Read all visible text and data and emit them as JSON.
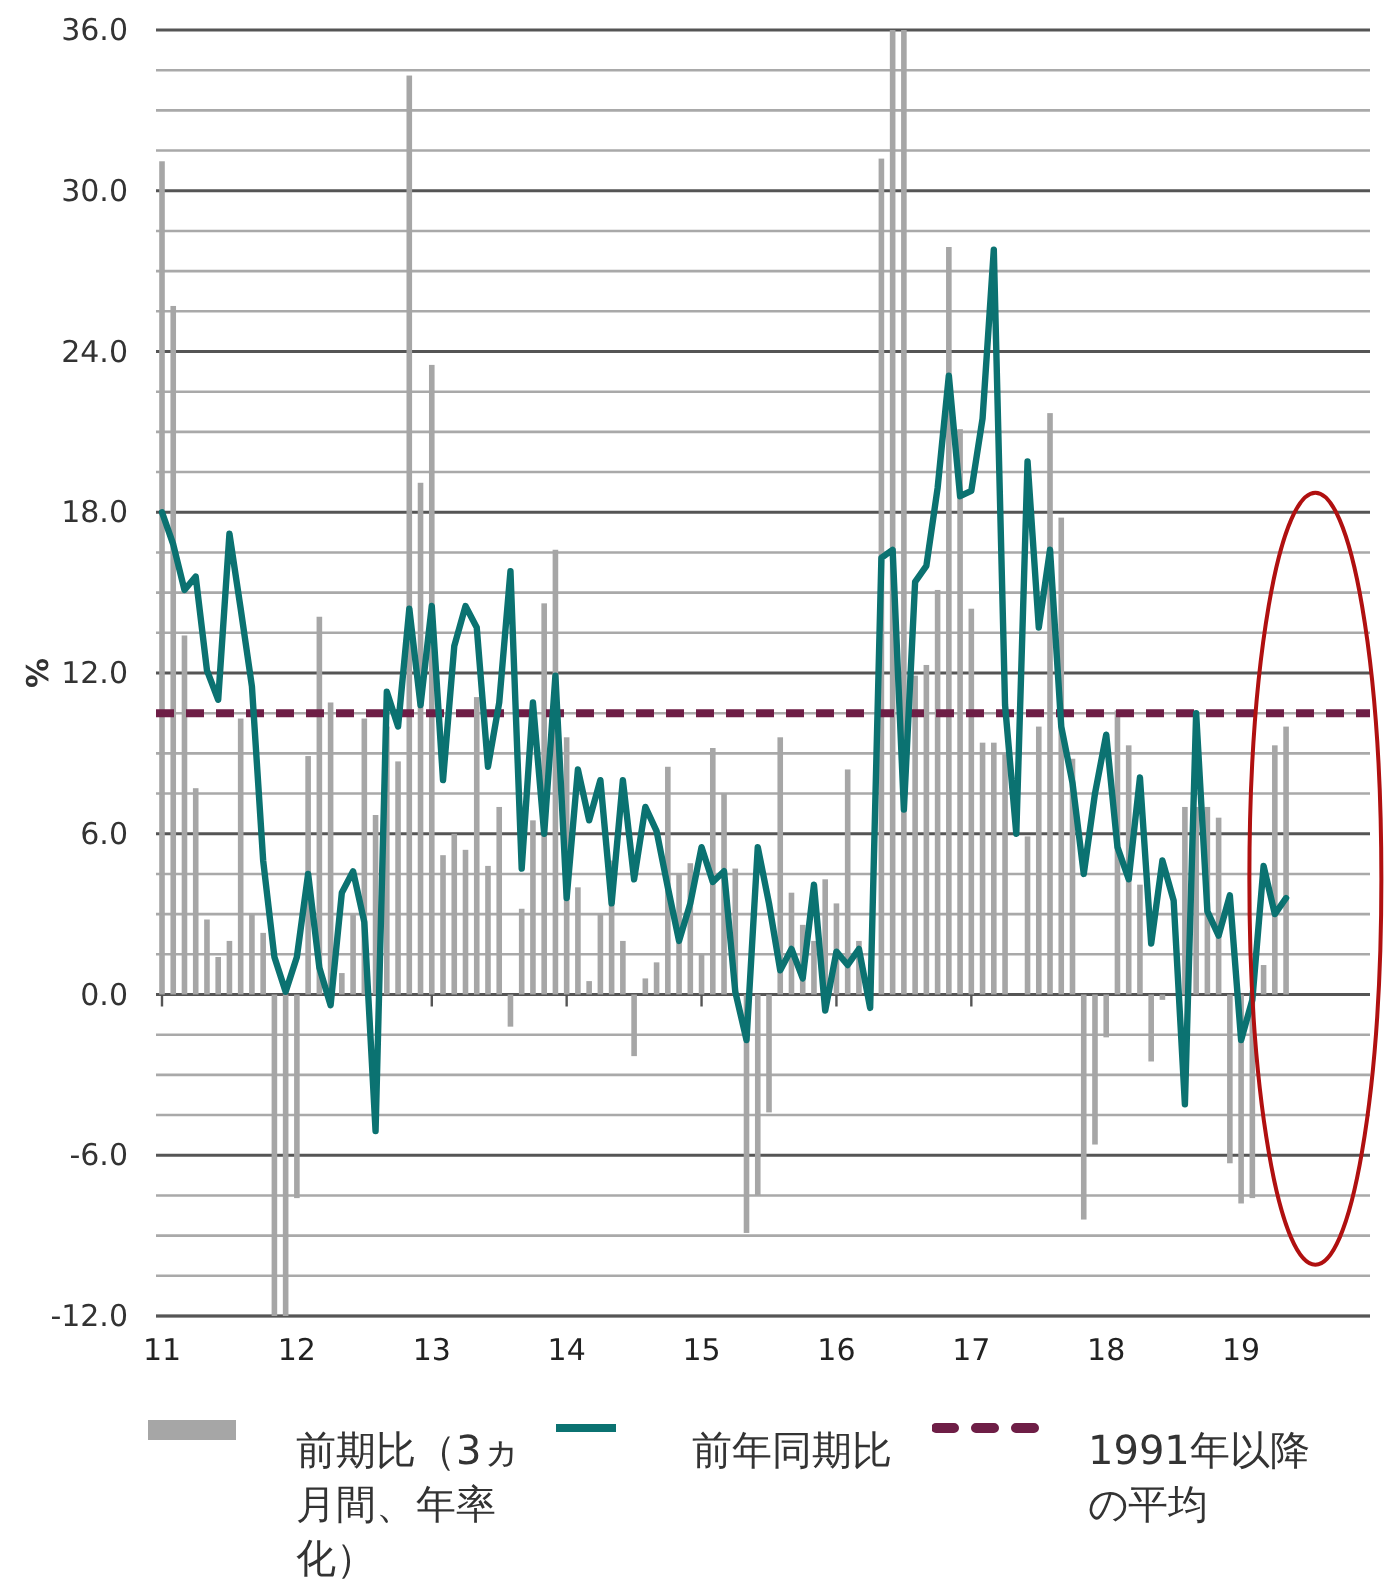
{
  "chart_data": {
    "type": "bar",
    "ylabel": "%",
    "x": [
      "2011-01",
      "2011-02",
      "2011-03",
      "2011-04",
      "2011-05",
      "2011-06",
      "2011-07",
      "2011-08",
      "2011-09",
      "2011-10",
      "2011-11",
      "2011-12",
      "2012-01",
      "2012-02",
      "2012-03",
      "2012-04",
      "2012-05",
      "2012-06",
      "2012-07",
      "2012-08",
      "2012-09",
      "2012-10",
      "2012-11",
      "2012-12",
      "2013-01",
      "2013-02",
      "2013-03",
      "2013-04",
      "2013-05",
      "2013-06",
      "2013-07",
      "2013-08",
      "2013-09",
      "2013-10",
      "2013-11",
      "2013-12",
      "2014-01",
      "2014-02",
      "2014-03",
      "2014-04",
      "2014-05",
      "2014-06",
      "2014-07",
      "2014-08",
      "2014-09",
      "2014-10",
      "2014-11",
      "2014-12",
      "2015-01",
      "2015-02",
      "2015-03",
      "2015-04",
      "2015-05",
      "2015-06",
      "2015-07",
      "2015-08",
      "2015-09",
      "2015-10",
      "2015-11",
      "2015-12",
      "2016-01",
      "2016-02",
      "2016-03",
      "2016-04",
      "2016-05",
      "2016-06",
      "2016-07",
      "2016-08",
      "2016-09",
      "2016-10",
      "2016-11",
      "2016-12",
      "2017-01",
      "2017-02",
      "2017-03",
      "2017-04",
      "2017-05",
      "2017-06",
      "2017-07",
      "2017-08",
      "2017-09",
      "2017-10",
      "2017-11",
      "2017-12",
      "2018-01",
      "2018-02",
      "2018-03",
      "2018-04",
      "2018-05",
      "2018-06",
      "2018-07",
      "2018-08",
      "2018-09",
      "2018-10",
      "2018-11",
      "2018-12",
      "2019-01",
      "2019-02",
      "2019-03",
      "2019-04",
      "2019-05"
    ],
    "series": [
      {
        "name": "前期比（3ヵ月間、年率化）",
        "type": "bar",
        "color": "#a6a6a6",
        "values": [
          31.1,
          25.7,
          13.4,
          7.7,
          2.8,
          1.4,
          2.0,
          10.3,
          3.0,
          2.3,
          -12,
          -12,
          -7.6,
          8.9,
          14.1,
          10.9,
          0.8,
          3.0,
          10.3,
          6.7,
          10.0,
          8.7,
          34.3,
          19.1,
          23.5,
          5.2,
          6.0,
          5.4,
          11.1,
          4.8,
          7.0,
          -1.2,
          3.2,
          6.5,
          14.6,
          16.6,
          9.6,
          4.0,
          0.5,
          3.0,
          5.0,
          2.0,
          -2.3,
          0.6,
          1.2,
          8.5,
          4.5,
          4.9,
          1.5,
          9.2,
          7.5,
          4.7,
          -8.9,
          -7.5,
          -4.4,
          9.6,
          3.8,
          2.6,
          2.0,
          4.3,
          3.4,
          8.4,
          2.0,
          null,
          31.2,
          36,
          36,
          11.9,
          12.3,
          15.1,
          27.9,
          21.1,
          14.4,
          9.4,
          9.4,
          9.0,
          null,
          5.9,
          10.0,
          21.7,
          17.8,
          8.8,
          -8.4,
          -5.6,
          -1.6,
          10.6,
          9.3,
          4.1,
          -2.5,
          -0.2,
          null,
          7.0,
          7.0,
          7.0,
          6.6,
          -6.3,
          -7.8,
          -7.6,
          1.1,
          9.3,
          10.0
        ]
      },
      {
        "name": "前年同期比",
        "type": "line",
        "color": "#0b7271",
        "values": [
          18.0,
          16.8,
          15.1,
          15.6,
          12.1,
          11.0,
          17.2,
          14.4,
          11.5,
          5.0,
          1.4,
          0.1,
          1.4,
          4.5,
          1.0,
          -0.4,
          3.8,
          4.6,
          2.7,
          -5.1,
          11.3,
          10.0,
          14.4,
          10.8,
          14.5,
          8.0,
          13.0,
          14.5,
          13.7,
          8.5,
          10.9,
          15.8,
          4.7,
          10.9,
          6.0,
          11.9,
          3.6,
          8.4,
          6.5,
          8.0,
          3.4,
          8.0,
          4.3,
          7.0,
          6.1,
          4.0,
          2.0,
          3.4,
          5.5,
          4.2,
          4.6,
          0.1,
          -1.7,
          5.5,
          3.4,
          0.9,
          1.7,
          0.6,
          4.1,
          -0.6,
          1.6,
          1.1,
          1.7,
          -0.5,
          16.3,
          16.6,
          6.9,
          15.4,
          16.0,
          18.9,
          23.1,
          18.6,
          18.8,
          21.5,
          27.8,
          10.8,
          6.0,
          19.9,
          13.7,
          16.6,
          10.0,
          7.9,
          4.5,
          7.5,
          9.7,
          5.5,
          4.3,
          8.1,
          1.9,
          5.0,
          3.5,
          -4.1,
          10.5,
          3.1,
          2.2,
          3.7,
          -1.7,
          -0.2,
          4.8,
          3.0,
          3.6
        ]
      }
    ],
    "ref_lines": [
      {
        "axis": "y",
        "value": 10.5,
        "label": "1991年以降の平均",
        "color": "#6e1e46",
        "line_style": "dashed"
      }
    ],
    "xlim": [
      "2010-12-15",
      "2019-12-15"
    ],
    "xticks": [
      {
        "value": "2011-01",
        "label": "11"
      },
      {
        "value": "2012-01",
        "label": "12"
      },
      {
        "value": "2013-01",
        "label": "13"
      },
      {
        "value": "2014-01",
        "label": "14"
      },
      {
        "value": "2015-01",
        "label": "15"
      },
      {
        "value": "2016-01",
        "label": "16"
      },
      {
        "value": "2017-01",
        "label": "17"
      },
      {
        "value": "2018-01",
        "label": "18"
      },
      {
        "value": "2019-01",
        "label": "19"
      }
    ],
    "ylim": [
      -12,
      36
    ],
    "yticks": [
      {
        "value": -12,
        "label": "-12.0"
      },
      {
        "value": -10.5,
        "label": null
      },
      {
        "value": -9,
        "label": null
      },
      {
        "value": -7.5,
        "label": null
      },
      {
        "value": -6,
        "label": "-6.0"
      },
      {
        "value": -4.5,
        "label": null
      },
      {
        "value": -3,
        "label": null
      },
      {
        "value": -1.5,
        "label": null
      },
      {
        "value": 0,
        "label": "0.0"
      },
      {
        "value": 1.5,
        "label": null
      },
      {
        "value": 3,
        "label": null
      },
      {
        "value": 4.5,
        "label": null
      },
      {
        "value": 6,
        "label": "6.0"
      },
      {
        "value": 7.5,
        "label": null
      },
      {
        "value": 9,
        "label": null
      },
      {
        "value": 10.5,
        "label": null
      },
      {
        "value": 12,
        "label": "12.0"
      },
      {
        "value": 13.5,
        "label": null
      },
      {
        "value": 15,
        "label": null
      },
      {
        "value": 16.5,
        "label": null
      },
      {
        "value": 18,
        "label": "18.0"
      },
      {
        "value": 19.5,
        "label": null
      },
      {
        "value": 21,
        "label": null
      },
      {
        "value": 22.5,
        "label": null
      },
      {
        "value": 24,
        "label": "24.0"
      },
      {
        "value": 25.5,
        "label": null
      },
      {
        "value": 27,
        "label": null
      },
      {
        "value": 28.5,
        "label": null
      },
      {
        "value": 30,
        "label": "30.0"
      },
      {
        "value": 31.5,
        "label": null
      },
      {
        "value": 33,
        "label": null
      },
      {
        "value": 34.5,
        "label": null
      },
      {
        "value": 36,
        "label": "36.0"
      }
    ],
    "grid": "y",
    "legend": "bottom"
  }
}
